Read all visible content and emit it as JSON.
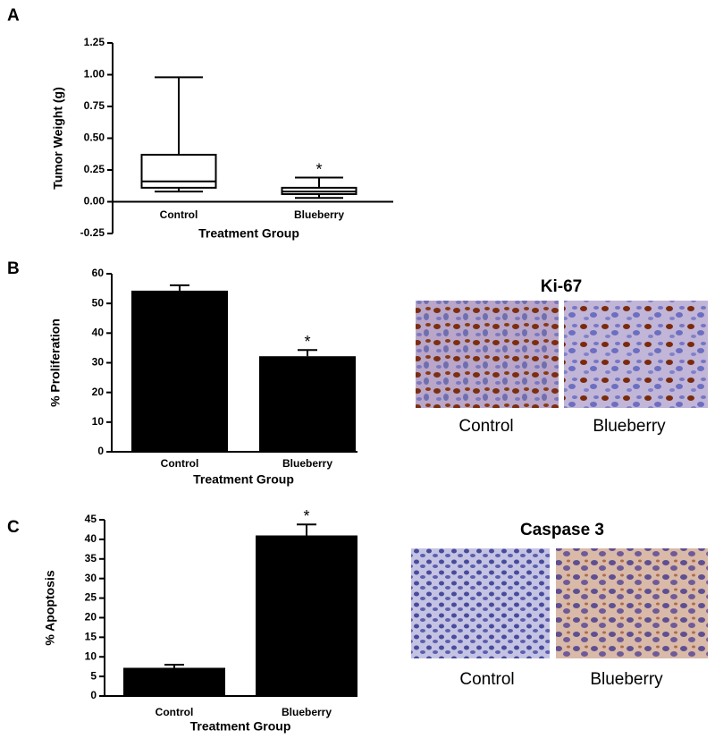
{
  "panels": [
    "A",
    "B",
    "C"
  ],
  "images": [
    {
      "title": "Ki-67",
      "captions": [
        "Control",
        "Blueberry"
      ]
    },
    {
      "title": "Caspase 3",
      "captions": [
        "Control",
        "Blueberry"
      ]
    }
  ],
  "chart_data": [
    {
      "type": "box",
      "ylabel": "Tumor Weight (g)",
      "xlabel": "Treatment Group",
      "categories": [
        "Control",
        "Blueberry"
      ],
      "min": [
        0.08,
        0.03
      ],
      "q1": [
        0.11,
        0.06
      ],
      "median": [
        0.16,
        0.08
      ],
      "q3": [
        0.37,
        0.11
      ],
      "max": [
        0.98,
        0.19
      ],
      "color": "#ffffff",
      "annotations": [
        {
          "text": "*",
          "at": "Blueberry"
        }
      ],
      "ylim": [
        -0.25,
        1.25
      ],
      "yticks": [
        -0.25,
        {
          "value": 0,
          "label": "0.00"
        },
        0.25,
        {
          "value": 0.5,
          "label": "0.50"
        },
        0.75,
        {
          "value": 1,
          "label": "1.00"
        },
        1.25
      ]
    },
    {
      "type": "bar",
      "ylabel": "% Proliferation",
      "xlabel": "Treatment Group",
      "categories": [
        "Control",
        "Blueberry"
      ],
      "values": [
        54.3,
        32.2
      ],
      "errors": [
        1.8,
        2.1
      ],
      "color": "#000000",
      "annotations": [
        {
          "text": "*",
          "at": "Blueberry"
        }
      ],
      "ylim": [
        0,
        60
      ],
      "yticks": [
        0,
        10,
        20,
        30,
        40,
        50,
        60
      ]
    },
    {
      "type": "bar",
      "ylabel": "% Apoptosis",
      "xlabel": "Treatment Group",
      "categories": [
        "Control",
        "Blueberry"
      ],
      "values": [
        7.2,
        41
      ],
      "errors": [
        0.8,
        2.8
      ],
      "color": "#000000",
      "annotations": [
        {
          "text": "*",
          "at": "Blueberry"
        }
      ],
      "ylim": [
        0,
        45
      ],
      "yticks": [
        0,
        5,
        10,
        15,
        20,
        25,
        30,
        35,
        40,
        45
      ]
    }
  ]
}
